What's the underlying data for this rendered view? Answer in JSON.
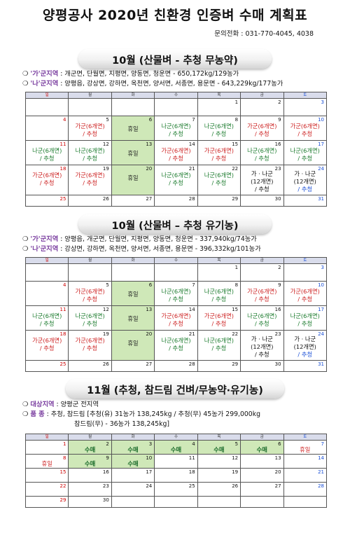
{
  "title": "양평공사 2020년 친환경 인증벼 수매 계획표",
  "contact": "문의전화 : 031-770-4045,  4038",
  "weekdays": [
    "일",
    "월",
    "화",
    "수",
    "목",
    "금",
    "토"
  ],
  "section1": {
    "banner": "10월 (산물벼 - 추청 무농약)",
    "lines": [
      {
        "bullet": "❍",
        "region": "'가'군지역",
        "text": " : 개군면, 단월면, 지평면, 양동면, 청운면 - 650,172kg/129농가"
      },
      {
        "bullet": "❍",
        "region": "'나'군지역",
        "text": " : 양평읍, 강상면, 강하면, 옥천면, 양서면, 서종면, 용문면 - 643,229kg/177농가"
      }
    ]
  },
  "section2": {
    "banner": "10월 (산물벼 – 추청 유기농)",
    "lines": [
      {
        "bullet": "❍",
        "region": "'가'군지역",
        "text": " : 양평읍, 개군면, 단월면, 지평면, 양동면, 청운면 - 337,940kg/74농가"
      },
      {
        "bullet": "❍",
        "region": "'나'군지역",
        "text": " : 강상면, 강하면, 옥천면, 양서면, 서종면, 용문면 - 396,332kg/101농가"
      }
    ]
  },
  "section3": {
    "banner": "11월 (추청, 참드림 건벼/무농약·유기농)",
    "lines": [
      {
        "bullet": "❍",
        "region": "대상지역",
        "text": " : 양평군 전지역"
      },
      {
        "bullet": "❍",
        "region": "품      종",
        "text": " : 추청, 참드림 [추청(유) 31농가 138,245kg / 추청(무) 45농가 299,000kg"
      },
      {
        "bullet": "",
        "region": "",
        "text": "참드림(무) - 36농가 138,245kg]"
      }
    ]
  },
  "labels": {
    "ga": "가군(6개면)",
    "na": "나군(6개면)",
    "crop": "/ 추청",
    "holiday": "휴일",
    "both": "가 · 나군",
    "twelve": "(12개면)",
    "sooman": "수매"
  },
  "cal1": {
    "weeks": [
      [
        {
          "d": ""
        },
        {
          "d": ""
        },
        {
          "d": ""
        },
        {
          "d": ""
        },
        {
          "d": "1"
        },
        {
          "d": "2"
        },
        {
          "d": "3"
        }
      ],
      [
        {
          "d": "4"
        },
        {
          "d": "5",
          "c": "ga"
        },
        {
          "d": "6",
          "c": "holiday",
          "g": 1
        },
        {
          "d": "7",
          "c": "na"
        },
        {
          "d": "8",
          "c": "na"
        },
        {
          "d": "9",
          "c": "ga"
        },
        {
          "d": "10",
          "c": "ga"
        }
      ],
      [
        {
          "d": "11",
          "c": "na"
        },
        {
          "d": "12",
          "c": "na"
        },
        {
          "d": "13",
          "c": "holiday",
          "g": 1
        },
        {
          "d": "14",
          "c": "ga"
        },
        {
          "d": "15",
          "c": "ga"
        },
        {
          "d": "16",
          "c": "na"
        },
        {
          "d": "17",
          "c": "na"
        }
      ],
      [
        {
          "d": "18",
          "c": "ga"
        },
        {
          "d": "19",
          "c": "ga"
        },
        {
          "d": "20",
          "c": "holiday",
          "g": 1
        },
        {
          "d": "21",
          "c": "na"
        },
        {
          "d": "22",
          "c": "na"
        },
        {
          "d": "23",
          "c": "both"
        },
        {
          "d": "24",
          "c": "both"
        }
      ],
      [
        {
          "d": "25"
        },
        {
          "d": "26"
        },
        {
          "d": "27"
        },
        {
          "d": "28"
        },
        {
          "d": "29"
        },
        {
          "d": "30"
        },
        {
          "d": "31"
        }
      ]
    ]
  },
  "cal2": {
    "weeks": [
      [
        {
          "d": ""
        },
        {
          "d": ""
        },
        {
          "d": ""
        },
        {
          "d": ""
        },
        {
          "d": "1"
        },
        {
          "d": "2"
        },
        {
          "d": "3"
        }
      ],
      [
        {
          "d": "4"
        },
        {
          "d": "5",
          "c": "ga"
        },
        {
          "d": "6",
          "c": "holiday",
          "g": 1
        },
        {
          "d": "7",
          "c": "na"
        },
        {
          "d": "8",
          "c": "na"
        },
        {
          "d": "9",
          "c": "ga"
        },
        {
          "d": "10",
          "c": "ga"
        }
      ],
      [
        {
          "d": "11",
          "c": "na"
        },
        {
          "d": "12",
          "c": "na"
        },
        {
          "d": "13",
          "c": "holiday",
          "g": 1
        },
        {
          "d": "14",
          "c": "ga"
        },
        {
          "d": "15",
          "c": "ga"
        },
        {
          "d": "16",
          "c": "na"
        },
        {
          "d": "17",
          "c": "na"
        }
      ],
      [
        {
          "d": "18",
          "c": "ga"
        },
        {
          "d": "19",
          "c": "ga"
        },
        {
          "d": "20",
          "c": "holiday",
          "g": 1
        },
        {
          "d": "21",
          "c": "na"
        },
        {
          "d": "22",
          "c": "na"
        },
        {
          "d": "23",
          "c": "both"
        },
        {
          "d": "24",
          "c": "both"
        }
      ],
      [
        {
          "d": "25"
        },
        {
          "d": "26"
        },
        {
          "d": "27"
        },
        {
          "d": "28"
        },
        {
          "d": "29"
        },
        {
          "d": "30"
        },
        {
          "d": "31"
        }
      ]
    ]
  },
  "cal3": {
    "weeks": [
      [
        {
          "d": "1"
        },
        {
          "d": "2",
          "c": "sooman",
          "g": 1
        },
        {
          "d": "3",
          "c": "sooman",
          "g": 1
        },
        {
          "d": "4",
          "c": "sooman",
          "g": 1
        },
        {
          "d": "5",
          "c": "sooman",
          "g": 1
        },
        {
          "d": "6",
          "c": "sooman",
          "g": 1
        },
        {
          "d": "7",
          "c": "holiday"
        }
      ],
      [
        {
          "d": "8",
          "c": "holiday"
        },
        {
          "d": "9",
          "c": "sooman",
          "g": 1
        },
        {
          "d": "10",
          "c": "sooman",
          "g": 1
        },
        {
          "d": "11"
        },
        {
          "d": "12"
        },
        {
          "d": "13"
        },
        {
          "d": "14"
        }
      ],
      [
        {
          "d": "15"
        },
        {
          "d": "16"
        },
        {
          "d": "17"
        },
        {
          "d": "18"
        },
        {
          "d": "19"
        },
        {
          "d": "20"
        },
        {
          "d": "21"
        }
      ],
      [
        {
          "d": "22"
        },
        {
          "d": "23"
        },
        {
          "d": "24"
        },
        {
          "d": "25"
        },
        {
          "d": "26"
        },
        {
          "d": "27"
        },
        {
          "d": "28"
        }
      ],
      [
        {
          "d": "29"
        },
        {
          "d": "30"
        },
        {
          "d": ""
        },
        {
          "d": ""
        },
        {
          "d": ""
        },
        {
          "d": ""
        },
        {
          "d": ""
        }
      ]
    ]
  }
}
